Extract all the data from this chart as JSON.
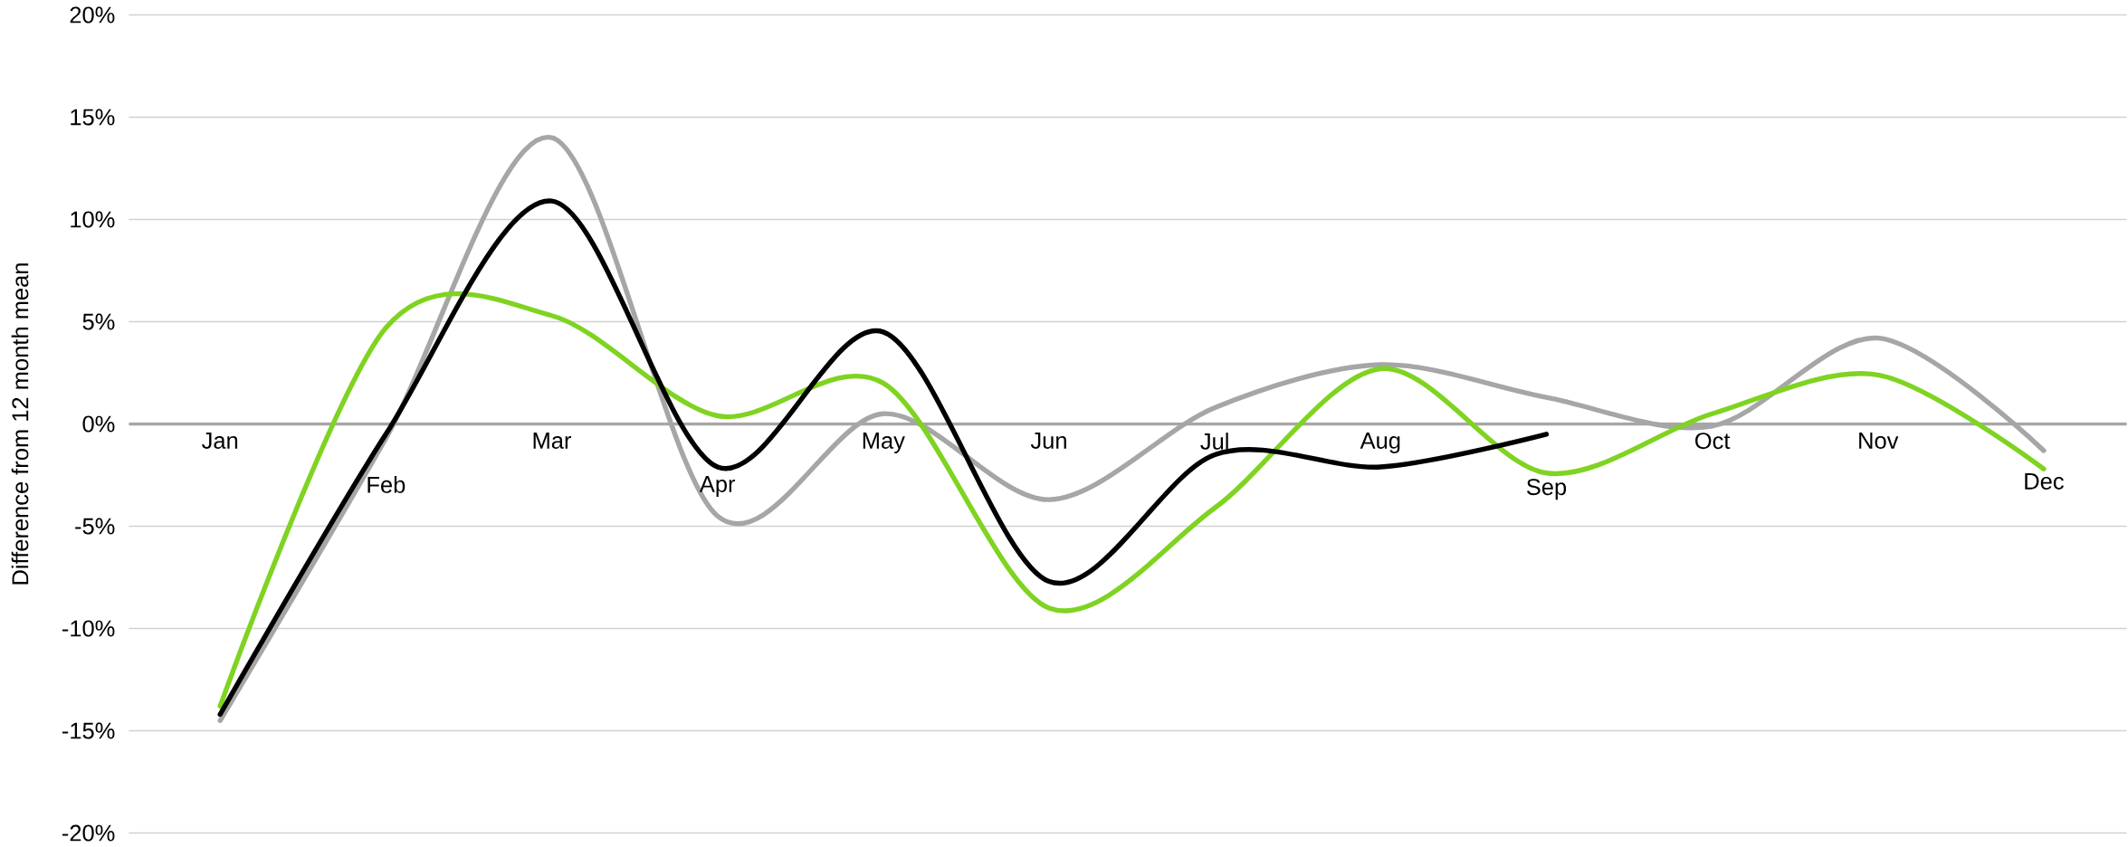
{
  "chart_data": {
    "type": "line",
    "ylabel": "Difference from 12 month mean",
    "categories": [
      "Jan",
      "Feb",
      "Mar",
      "Apr",
      "May",
      "Jun",
      "Jul",
      "Aug",
      "Sep",
      "Oct",
      "Nov",
      "Dec"
    ],
    "series": [
      {
        "color": "#a6a6a6",
        "values": [
          -14.5,
          -0.7,
          14.0,
          -4.5,
          0.5,
          -3.7,
          0.8,
          2.9,
          1.3,
          -0.1,
          4.2,
          -1.3
        ]
      },
      {
        "color": "#7fd321",
        "values": [
          -13.8,
          4.7,
          5.3,
          0.4,
          2.0,
          -9.0,
          -4.1,
          2.7,
          -2.4,
          0.5,
          2.4,
          -2.2
        ]
      },
      {
        "color": "#000000",
        "values": [
          -14.2,
          -0.5,
          10.9,
          -2.1,
          4.5,
          -7.7,
          -1.5,
          -2.1,
          -0.5,
          null,
          null,
          null
        ]
      }
    ],
    "ylim": [
      -20,
      20
    ],
    "yticks": [
      {
        "value": -20,
        "label": "-20%"
      },
      {
        "value": -15,
        "label": "-15%"
      },
      {
        "value": -10,
        "label": "-10%"
      },
      {
        "value": -5,
        "label": "-5%"
      },
      {
        "value": 0,
        "label": "0%"
      },
      {
        "value": 5,
        "label": "5%"
      },
      {
        "value": 10,
        "label": "10%"
      },
      {
        "value": 15,
        "label": "15%"
      },
      {
        "value": 20,
        "label": "20%"
      }
    ],
    "grid": "y"
  }
}
